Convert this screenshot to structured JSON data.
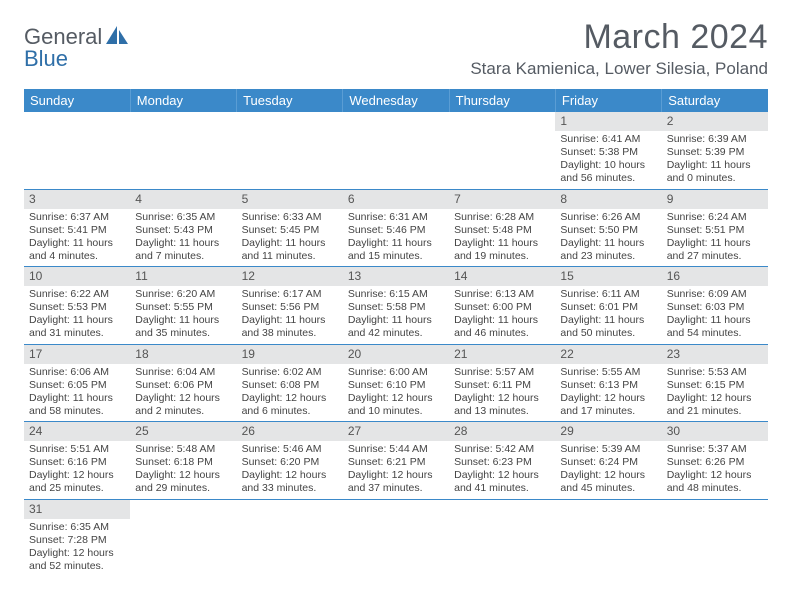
{
  "logo": {
    "text1": "General",
    "text2": "Blue"
  },
  "header": {
    "month_title": "March 2024",
    "location": "Stara Kamienica, Lower Silesia, Poland"
  },
  "colors": {
    "header_bg": "#3b89c9",
    "header_text": "#ffffff",
    "daynum_bg": "#e4e5e6",
    "row_border": "#3b89c9",
    "body_text": "#444444",
    "title_text": "#555b63",
    "logo_blue": "#2f6fa8"
  },
  "day_headers": [
    "Sunday",
    "Monday",
    "Tuesday",
    "Wednesday",
    "Thursday",
    "Friday",
    "Saturday"
  ],
  "weeks": [
    [
      {
        "n": "",
        "sr": "",
        "ss": "",
        "dl": ""
      },
      {
        "n": "",
        "sr": "",
        "ss": "",
        "dl": ""
      },
      {
        "n": "",
        "sr": "",
        "ss": "",
        "dl": ""
      },
      {
        "n": "",
        "sr": "",
        "ss": "",
        "dl": ""
      },
      {
        "n": "",
        "sr": "",
        "ss": "",
        "dl": ""
      },
      {
        "n": "1",
        "sr": "Sunrise: 6:41 AM",
        "ss": "Sunset: 5:38 PM",
        "dl": "Daylight: 10 hours and 56 minutes."
      },
      {
        "n": "2",
        "sr": "Sunrise: 6:39 AM",
        "ss": "Sunset: 5:39 PM",
        "dl": "Daylight: 11 hours and 0 minutes."
      }
    ],
    [
      {
        "n": "3",
        "sr": "Sunrise: 6:37 AM",
        "ss": "Sunset: 5:41 PM",
        "dl": "Daylight: 11 hours and 4 minutes."
      },
      {
        "n": "4",
        "sr": "Sunrise: 6:35 AM",
        "ss": "Sunset: 5:43 PM",
        "dl": "Daylight: 11 hours and 7 minutes."
      },
      {
        "n": "5",
        "sr": "Sunrise: 6:33 AM",
        "ss": "Sunset: 5:45 PM",
        "dl": "Daylight: 11 hours and 11 minutes."
      },
      {
        "n": "6",
        "sr": "Sunrise: 6:31 AM",
        "ss": "Sunset: 5:46 PM",
        "dl": "Daylight: 11 hours and 15 minutes."
      },
      {
        "n": "7",
        "sr": "Sunrise: 6:28 AM",
        "ss": "Sunset: 5:48 PM",
        "dl": "Daylight: 11 hours and 19 minutes."
      },
      {
        "n": "8",
        "sr": "Sunrise: 6:26 AM",
        "ss": "Sunset: 5:50 PM",
        "dl": "Daylight: 11 hours and 23 minutes."
      },
      {
        "n": "9",
        "sr": "Sunrise: 6:24 AM",
        "ss": "Sunset: 5:51 PM",
        "dl": "Daylight: 11 hours and 27 minutes."
      }
    ],
    [
      {
        "n": "10",
        "sr": "Sunrise: 6:22 AM",
        "ss": "Sunset: 5:53 PM",
        "dl": "Daylight: 11 hours and 31 minutes."
      },
      {
        "n": "11",
        "sr": "Sunrise: 6:20 AM",
        "ss": "Sunset: 5:55 PM",
        "dl": "Daylight: 11 hours and 35 minutes."
      },
      {
        "n": "12",
        "sr": "Sunrise: 6:17 AM",
        "ss": "Sunset: 5:56 PM",
        "dl": "Daylight: 11 hours and 38 minutes."
      },
      {
        "n": "13",
        "sr": "Sunrise: 6:15 AM",
        "ss": "Sunset: 5:58 PM",
        "dl": "Daylight: 11 hours and 42 minutes."
      },
      {
        "n": "14",
        "sr": "Sunrise: 6:13 AM",
        "ss": "Sunset: 6:00 PM",
        "dl": "Daylight: 11 hours and 46 minutes."
      },
      {
        "n": "15",
        "sr": "Sunrise: 6:11 AM",
        "ss": "Sunset: 6:01 PM",
        "dl": "Daylight: 11 hours and 50 minutes."
      },
      {
        "n": "16",
        "sr": "Sunrise: 6:09 AM",
        "ss": "Sunset: 6:03 PM",
        "dl": "Daylight: 11 hours and 54 minutes."
      }
    ],
    [
      {
        "n": "17",
        "sr": "Sunrise: 6:06 AM",
        "ss": "Sunset: 6:05 PM",
        "dl": "Daylight: 11 hours and 58 minutes."
      },
      {
        "n": "18",
        "sr": "Sunrise: 6:04 AM",
        "ss": "Sunset: 6:06 PM",
        "dl": "Daylight: 12 hours and 2 minutes."
      },
      {
        "n": "19",
        "sr": "Sunrise: 6:02 AM",
        "ss": "Sunset: 6:08 PM",
        "dl": "Daylight: 12 hours and 6 minutes."
      },
      {
        "n": "20",
        "sr": "Sunrise: 6:00 AM",
        "ss": "Sunset: 6:10 PM",
        "dl": "Daylight: 12 hours and 10 minutes."
      },
      {
        "n": "21",
        "sr": "Sunrise: 5:57 AM",
        "ss": "Sunset: 6:11 PM",
        "dl": "Daylight: 12 hours and 13 minutes."
      },
      {
        "n": "22",
        "sr": "Sunrise: 5:55 AM",
        "ss": "Sunset: 6:13 PM",
        "dl": "Daylight: 12 hours and 17 minutes."
      },
      {
        "n": "23",
        "sr": "Sunrise: 5:53 AM",
        "ss": "Sunset: 6:15 PM",
        "dl": "Daylight: 12 hours and 21 minutes."
      }
    ],
    [
      {
        "n": "24",
        "sr": "Sunrise: 5:51 AM",
        "ss": "Sunset: 6:16 PM",
        "dl": "Daylight: 12 hours and 25 minutes."
      },
      {
        "n": "25",
        "sr": "Sunrise: 5:48 AM",
        "ss": "Sunset: 6:18 PM",
        "dl": "Daylight: 12 hours and 29 minutes."
      },
      {
        "n": "26",
        "sr": "Sunrise: 5:46 AM",
        "ss": "Sunset: 6:20 PM",
        "dl": "Daylight: 12 hours and 33 minutes."
      },
      {
        "n": "27",
        "sr": "Sunrise: 5:44 AM",
        "ss": "Sunset: 6:21 PM",
        "dl": "Daylight: 12 hours and 37 minutes."
      },
      {
        "n": "28",
        "sr": "Sunrise: 5:42 AM",
        "ss": "Sunset: 6:23 PM",
        "dl": "Daylight: 12 hours and 41 minutes."
      },
      {
        "n": "29",
        "sr": "Sunrise: 5:39 AM",
        "ss": "Sunset: 6:24 PM",
        "dl": "Daylight: 12 hours and 45 minutes."
      },
      {
        "n": "30",
        "sr": "Sunrise: 5:37 AM",
        "ss": "Sunset: 6:26 PM",
        "dl": "Daylight: 12 hours and 48 minutes."
      }
    ],
    [
      {
        "n": "31",
        "sr": "Sunrise: 6:35 AM",
        "ss": "Sunset: 7:28 PM",
        "dl": "Daylight: 12 hours and 52 minutes."
      },
      {
        "n": "",
        "sr": "",
        "ss": "",
        "dl": ""
      },
      {
        "n": "",
        "sr": "",
        "ss": "",
        "dl": ""
      },
      {
        "n": "",
        "sr": "",
        "ss": "",
        "dl": ""
      },
      {
        "n": "",
        "sr": "",
        "ss": "",
        "dl": ""
      },
      {
        "n": "",
        "sr": "",
        "ss": "",
        "dl": ""
      },
      {
        "n": "",
        "sr": "",
        "ss": "",
        "dl": ""
      }
    ]
  ]
}
